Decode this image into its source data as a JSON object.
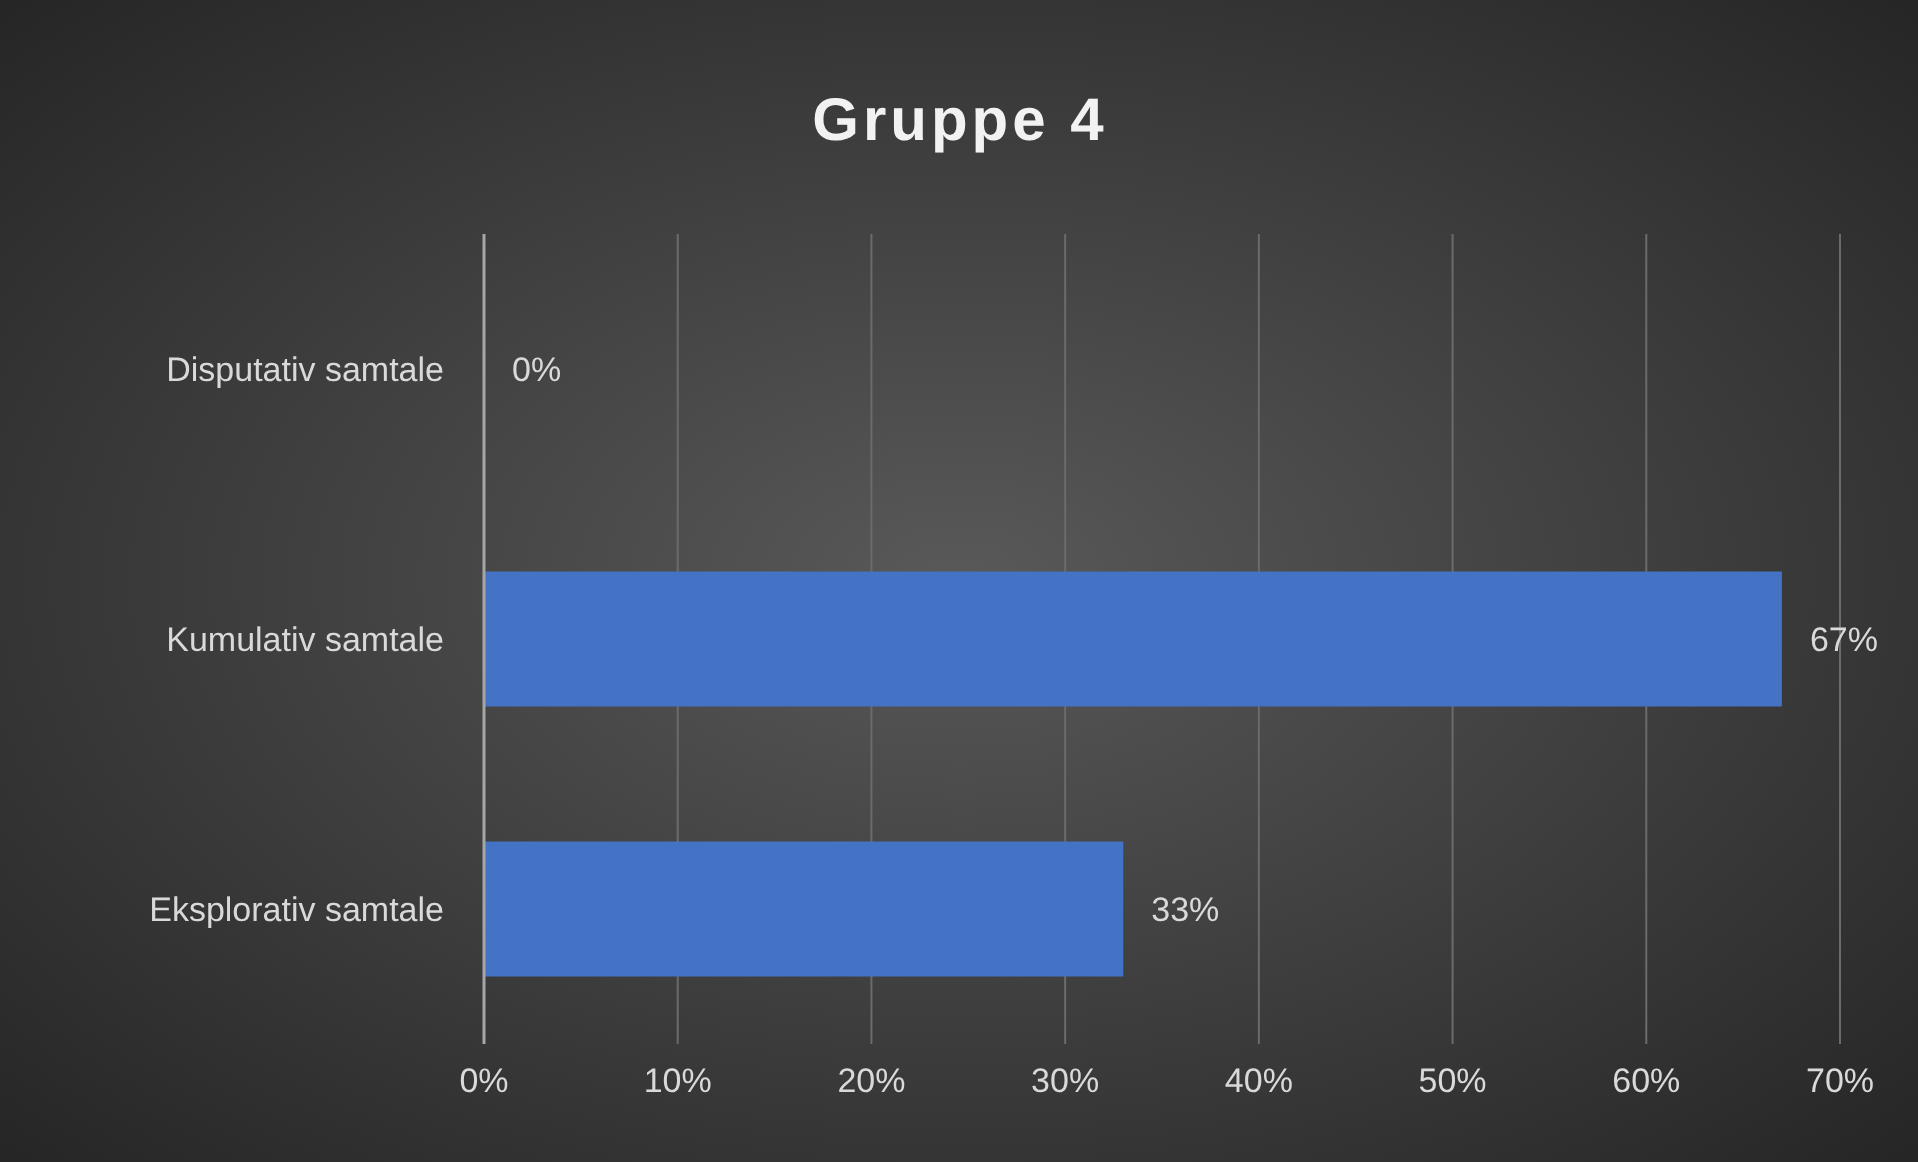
{
  "chart_data": {
    "type": "bar",
    "orientation": "horizontal",
    "title": "Gruppe 4",
    "categories": [
      "Disputativ samtale",
      "Kumulativ samtale",
      "Eksplorativ samtale"
    ],
    "values": [
      0,
      67,
      33
    ],
    "color": "#4472c4",
    "value_labels": [
      "0%",
      "67%",
      "33%"
    ],
    "xlim": [
      0,
      70
    ],
    "xticks": [
      {
        "value": 0,
        "label": "0%"
      },
      {
        "value": 10,
        "label": "10%"
      },
      {
        "value": 20,
        "label": "20%"
      },
      {
        "value": 30,
        "label": "30%"
      },
      {
        "value": 40,
        "label": "40%"
      },
      {
        "value": 50,
        "label": "50%"
      },
      {
        "value": 60,
        "label": "60%"
      },
      {
        "value": 70,
        "label": "70%"
      }
    ],
    "grid": "x"
  }
}
